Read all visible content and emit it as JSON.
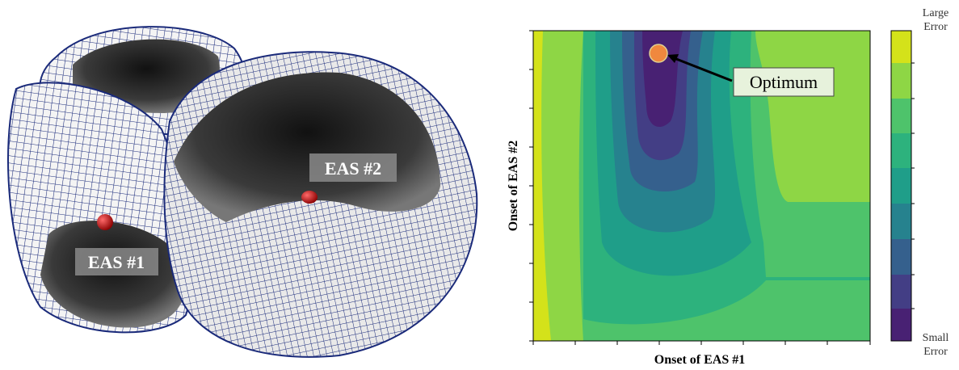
{
  "left_panel": {
    "labels": [
      "EAS #1",
      "EAS #2"
    ]
  },
  "right_panel": {
    "annotation": "Optimum",
    "x_label": "Onset of EAS #1",
    "y_label": "Onset of EAS #2",
    "colorbar": {
      "top_label": [
        "Large",
        "Error"
      ],
      "bottom_label": [
        "Small",
        "Error"
      ]
    }
  }
}
